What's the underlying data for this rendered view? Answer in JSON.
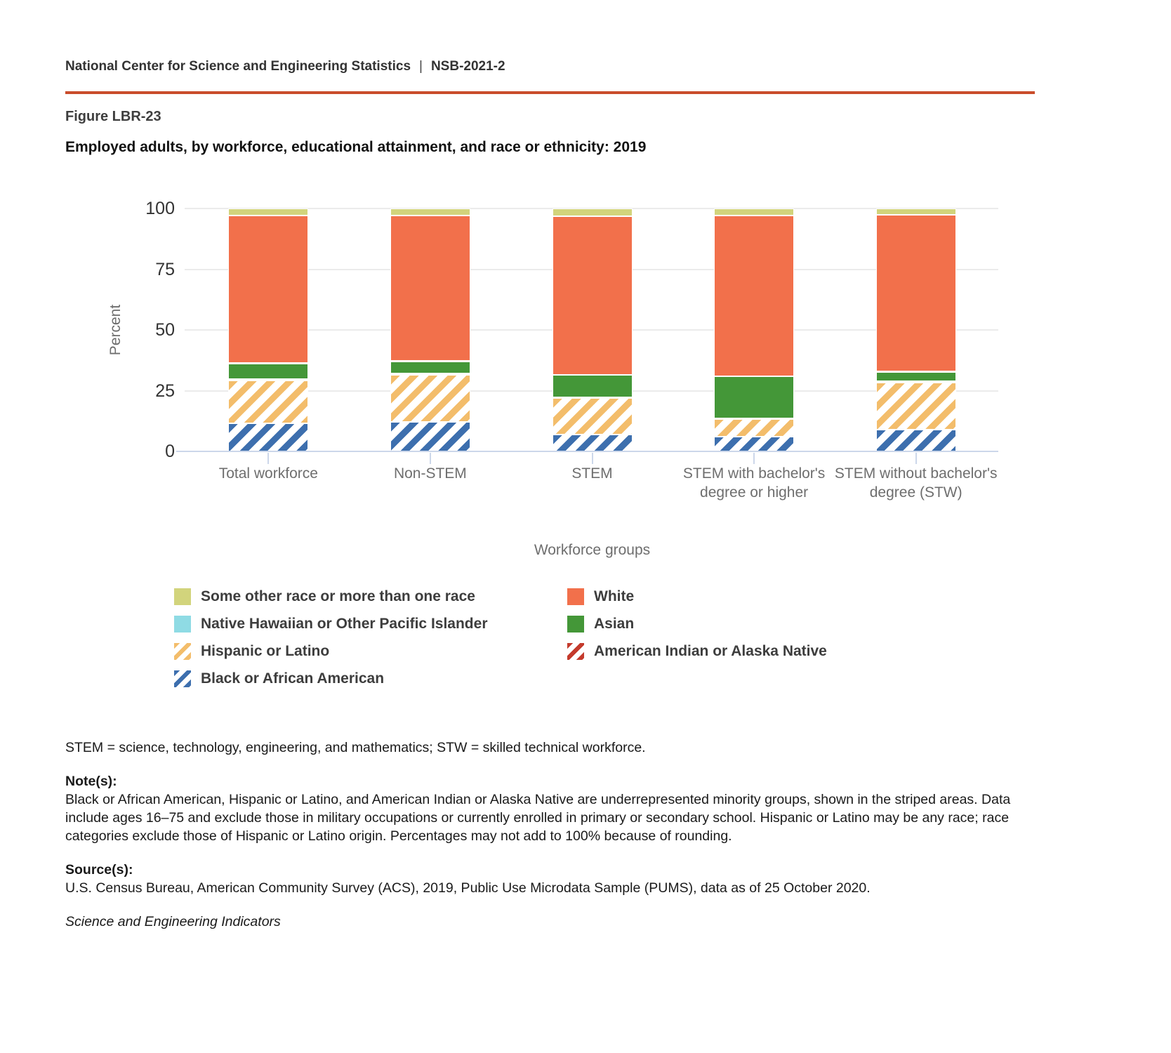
{
  "header": {
    "publisher": "National Center for Science and Engineering Statistics",
    "separator": "|",
    "report_id": "NSB-2021-2"
  },
  "figure": {
    "label": "Figure LBR-23",
    "title": "Employed adults, by workforce, educational attainment, and race or ethnicity: 2019"
  },
  "chart_data": {
    "type": "bar",
    "stacked": true,
    "xlabel": "Workforce groups",
    "ylabel": "Percent",
    "ylim": [
      0,
      100
    ],
    "yticks": [
      0,
      25,
      50,
      75,
      100
    ],
    "grid": true,
    "legend_position": "below",
    "categories": [
      "Total workforce",
      "Non-STEM",
      "STEM",
      "STEM with bachelor's degree or higher",
      "STEM without bachelor's degree (STW)"
    ],
    "series": [
      {
        "name": "Black or African American",
        "color": "#3d6fae",
        "pattern": "stripes",
        "values": [
          11.6,
          12.1,
          6.9,
          6.0,
          9.0
        ]
      },
      {
        "name": "Hispanic or Latino",
        "color": "#f3bd6b",
        "pattern": "stripes",
        "values": [
          17.6,
          19.4,
          15.0,
          7.3,
          19.3
        ]
      },
      {
        "name": "American Indian or Alaska Native",
        "color": "#c43a2c",
        "pattern": "stripes",
        "values": [
          0.6,
          0.6,
          0.4,
          0.3,
          0.7
        ]
      },
      {
        "name": "Asian",
        "color": "#449738",
        "pattern": "solid",
        "values": [
          6.4,
          4.9,
          9.1,
          17.2,
          3.7
        ]
      },
      {
        "name": "Native Hawaiian or Other Pacific Islander",
        "color": "#8fdbe4",
        "pattern": "solid",
        "values": [
          0.2,
          0.2,
          0.2,
          0.1,
          0.2
        ]
      },
      {
        "name": "White",
        "color": "#f2704b",
        "pattern": "solid",
        "values": [
          60.8,
          59.9,
          65.3,
          66.3,
          64.4
        ]
      },
      {
        "name": "Some other race or more than one race",
        "color": "#d2d47c",
        "pattern": "solid",
        "values": [
          2.8,
          2.9,
          3.1,
          2.8,
          2.7
        ]
      }
    ],
    "legend_columns": [
      [
        "Some other race or more than one race",
        "Native Hawaiian or Other Pacific Islander",
        "Hispanic or Latino",
        "Black or African American"
      ],
      [
        "White",
        "Asian",
        "American Indian or Alaska Native"
      ]
    ]
  },
  "colors": {
    "accent_rule": "#c94d2b",
    "gridline": "#ebebeb",
    "axis_baseline": "#ccd7ea",
    "axis_text": "#6e6e6e",
    "tick_text": "#333333",
    "legend_text": "#3d3d3d"
  },
  "footnotes": {
    "abbreviations": "STEM = science, technology, engineering, and mathematics; STW = skilled technical workforce.",
    "notes_label": "Note(s):",
    "notes": "Black or African American, Hispanic or Latino, and American Indian or Alaska Native are underrepresented minority groups, shown in the striped areas. Data include ages 16–75 and exclude those in military occupations or currently enrolled in primary or secondary school. Hispanic or Latino may be any race; race categories exclude those of Hispanic or Latino origin. Percentages may not add to 100% because of rounding.",
    "source_label": "Source(s):",
    "source": "U.S. Census Bureau, American Community Survey (ACS), 2019, Public Use Microdata Sample (PUMS), data as of 25 October 2020.",
    "indicators": "Science and Engineering Indicators"
  }
}
